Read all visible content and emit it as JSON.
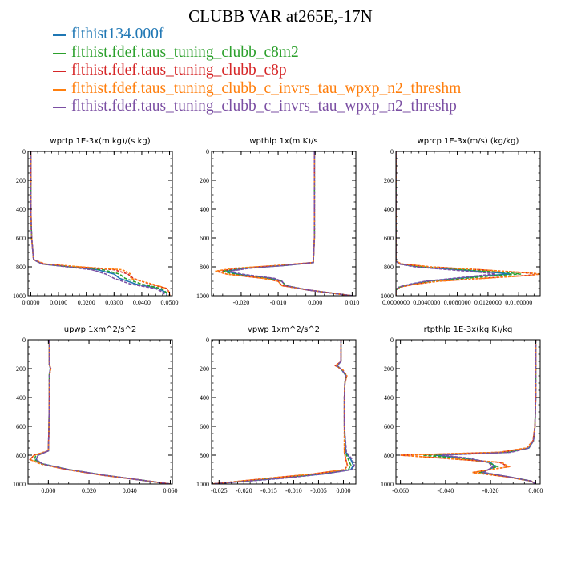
{
  "title": "CLUBB VAR at265E,-17N",
  "legend": [
    {
      "label": "flthist134.000f",
      "color": "#1f77b4"
    },
    {
      "label": "flthist.fdef.taus_tuning_clubb_c8m2",
      "color": "#2ca02c"
    },
    {
      "label": "flthist.fdef.taus_tuning_clubb_c8p",
      "color": "#d62728"
    },
    {
      "label": "flthist.fdef.taus_tuning_clubb_c_invrs_tau_wpxp_n2_threshm",
      "color": "#ff7f0e"
    },
    {
      "label": "flthist.fdef.taus_tuning_clubb_c_invrs_tau_wpxp_n2_threshp",
      "color": "#7b4fa3"
    }
  ],
  "chart_data": [
    {
      "type": "line",
      "title": "wprtp  1E-3x(m kg)/(s kg)",
      "xlim": [
        -0.001,
        0.051
      ],
      "ylim": [
        1000,
        0
      ],
      "xticks": [
        0.0,
        0.01,
        0.02,
        0.03,
        0.04,
        0.05
      ],
      "xtick_labels": [
        "0.0000",
        "0.0100",
        "0.0200",
        "0.0300",
        "0.0400",
        "0.0500"
      ],
      "yticks": [
        0,
        200,
        400,
        600,
        800,
        1000
      ],
      "ytick_labels": [
        "0",
        "200",
        "400",
        "600",
        "800",
        "1000"
      ],
      "y": [
        0,
        200,
        400,
        600,
        750,
        780,
        800,
        820,
        850,
        880,
        920,
        950,
        980,
        1000
      ],
      "series": [
        {
          "values": [
            0,
            0,
            0,
            0.0003,
            0.001,
            0.004,
            0.014,
            0.024,
            0.03,
            0.032,
            0.038,
            0.046,
            0.049,
            0.049
          ]
        },
        {
          "values": [
            0,
            0,
            0,
            0.0003,
            0.001,
            0.004,
            0.015,
            0.026,
            0.032,
            0.034,
            0.04,
            0.047,
            0.049,
            0.049
          ]
        },
        {
          "values": [
            0,
            0,
            0,
            0.0003,
            0.001,
            0.005,
            0.017,
            0.03,
            0.035,
            0.037,
            0.043,
            0.049,
            0.05,
            0.05
          ]
        },
        {
          "values": [
            0,
            0,
            0,
            0.0003,
            0.001,
            0.005,
            0.018,
            0.033,
            0.036,
            0.036,
            0.044,
            0.049,
            0.05,
            0.05
          ]
        },
        {
          "values": [
            0,
            0,
            0,
            0.0003,
            0.001,
            0.004,
            0.013,
            0.022,
            0.027,
            0.03,
            0.036,
            0.045,
            0.048,
            0.048
          ]
        }
      ]
    },
    {
      "type": "line",
      "title": "wpthlp  1x(m K)/s",
      "xlim": [
        -0.028,
        0.011
      ],
      "ylim": [
        1000,
        0
      ],
      "xticks": [
        -0.02,
        -0.01,
        0.0,
        0.01
      ],
      "xtick_labels": [
        "-0.020",
        "-0.010",
        "0.000",
        "0.010"
      ],
      "yticks": [
        0,
        200,
        400,
        600,
        800,
        1000
      ],
      "ytick_labels": [
        "0",
        "200",
        "400",
        "600",
        "800",
        "1000"
      ],
      "y": [
        0,
        200,
        400,
        600,
        770,
        790,
        810,
        830,
        850,
        880,
        900,
        930,
        960,
        1000
      ],
      "series": [
        {
          "values": [
            -0.0002,
            -0.0002,
            -0.0002,
            -0.0002,
            -0.0005,
            -0.008,
            -0.019,
            -0.024,
            -0.021,
            -0.012,
            -0.009,
            -0.008,
            -0.002,
            0.01
          ]
        },
        {
          "values": [
            -0.0002,
            -0.0002,
            -0.0002,
            -0.0002,
            -0.0005,
            -0.009,
            -0.02,
            -0.025,
            -0.022,
            -0.013,
            -0.009,
            -0.008,
            -0.002,
            0.01
          ]
        },
        {
          "values": [
            -0.0002,
            -0.0002,
            -0.0002,
            -0.0002,
            -0.0005,
            -0.01,
            -0.021,
            -0.026,
            -0.024,
            -0.014,
            -0.01,
            -0.009,
            -0.002,
            0.01
          ]
        },
        {
          "values": [
            -0.0002,
            -0.0002,
            -0.0002,
            -0.0002,
            -0.0005,
            -0.01,
            -0.022,
            -0.027,
            -0.024,
            -0.014,
            -0.01,
            -0.009,
            -0.002,
            0.01
          ]
        },
        {
          "values": [
            -0.0002,
            -0.0002,
            -0.0002,
            -0.0002,
            -0.0005,
            -0.008,
            -0.018,
            -0.023,
            -0.02,
            -0.011,
            -0.009,
            -0.008,
            -0.002,
            0.01
          ]
        }
      ]
    },
    {
      "type": "line",
      "title": "wprcp  1E-3x(m/s) (kg/kg)",
      "xlim": [
        0.0,
        0.0188
      ],
      "ylim": [
        1000,
        0
      ],
      "xticks": [
        0.0,
        0.004,
        0.008,
        0.012,
        0.016
      ],
      "xtick_labels": [
        "0.0000000",
        "0.0040000",
        "0.0080000",
        "0.0120000",
        "0.0160000"
      ],
      "yticks": [
        0,
        200,
        400,
        600,
        800,
        1000
      ],
      "ytick_labels": [
        "0",
        "200",
        "400",
        "600",
        "800",
        "1000"
      ],
      "y": [
        0,
        700,
        760,
        780,
        800,
        820,
        840,
        850,
        860,
        880,
        900,
        920,
        940,
        960,
        1000
      ],
      "series": [
        {
          "values": [
            0,
            0,
            0,
            0.0005,
            0.003,
            0.008,
            0.013,
            0.015,
            0.012,
            0.008,
            0.004,
            0.002,
            0.0005,
            0,
            0
          ]
        },
        {
          "values": [
            0,
            0,
            0,
            0.0006,
            0.0035,
            0.009,
            0.0145,
            0.0163,
            0.013,
            0.009,
            0.0045,
            0.0022,
            0.0005,
            0,
            0
          ]
        },
        {
          "values": [
            0,
            0,
            0,
            0.0007,
            0.0045,
            0.011,
            0.0165,
            0.0188,
            0.017,
            0.011,
            0.0055,
            0.0025,
            0.0006,
            0,
            0
          ]
        },
        {
          "values": [
            0,
            0,
            0,
            0.0007,
            0.0045,
            0.011,
            0.017,
            0.0188,
            0.0172,
            0.0115,
            0.0055,
            0.0025,
            0.0006,
            0,
            0
          ]
        },
        {
          "values": [
            0,
            0,
            0,
            0.0004,
            0.0025,
            0.007,
            0.0115,
            0.013,
            0.011,
            0.0075,
            0.0038,
            0.0018,
            0.0004,
            0,
            0
          ]
        }
      ]
    },
    {
      "type": "line",
      "title": "upwp  1xm^2/s^2",
      "xlim": [
        -0.01,
        0.061
      ],
      "ylim": [
        1000,
        0
      ],
      "xticks": [
        0.0,
        0.02,
        0.04,
        0.06
      ],
      "xtick_labels": [
        "0.000",
        "0.020",
        "0.040",
        "0.060"
      ],
      "yticks": [
        0,
        200,
        400,
        600,
        800,
        1000
      ],
      "ytick_labels": [
        "0",
        "200",
        "400",
        "600",
        "800",
        "1000"
      ],
      "y": [
        0,
        170,
        200,
        240,
        280,
        400,
        600,
        770,
        800,
        830,
        860,
        900,
        940,
        970,
        1000
      ],
      "series": [
        {
          "values": [
            0.0005,
            0.0005,
            0.001,
            0.0005,
            0.0005,
            0.0005,
            0.0003,
            0,
            -0.005,
            -0.006,
            -0.003,
            0.01,
            0.028,
            0.044,
            0.06
          ]
        },
        {
          "values": [
            0.0005,
            0.0005,
            0.001,
            0.0005,
            0.0005,
            0.0005,
            0.0003,
            0,
            -0.006,
            -0.007,
            -0.003,
            0.01,
            0.028,
            0.044,
            0.06
          ]
        },
        {
          "values": [
            0.0005,
            0.0005,
            0.0012,
            0.0006,
            0.0005,
            0.0005,
            0.0003,
            0,
            -0.007,
            -0.009,
            -0.004,
            0.009,
            0.027,
            0.044,
            0.06
          ]
        },
        {
          "values": [
            0.0005,
            0.0005,
            0.0012,
            0.0006,
            0.0005,
            0.0005,
            0.0003,
            0,
            -0.007,
            -0.009,
            -0.004,
            0.009,
            0.027,
            0.044,
            0.06
          ]
        },
        {
          "values": [
            0.0005,
            0.0005,
            0.001,
            0.0005,
            0.0005,
            0.0005,
            0.0003,
            0,
            -0.005,
            -0.006,
            -0.003,
            0.01,
            0.028,
            0.044,
            0.06
          ]
        }
      ]
    },
    {
      "type": "line",
      "title": "vpwp  1xm^2/s^2",
      "xlim": [
        -0.0265,
        0.0025
      ],
      "ylim": [
        1000,
        0
      ],
      "xticks": [
        -0.025,
        -0.02,
        -0.015,
        -0.01,
        -0.005,
        0.0
      ],
      "xtick_labels": [
        "-0.025",
        "-0.020",
        "-0.015",
        "-0.010",
        "-0.005",
        "0.000"
      ],
      "yticks": [
        0,
        200,
        400,
        600,
        800,
        1000
      ],
      "ytick_labels": [
        "0",
        "200",
        "400",
        "600",
        "800",
        "1000"
      ],
      "y": [
        0,
        150,
        180,
        210,
        250,
        300,
        400,
        600,
        780,
        830,
        870,
        900,
        930,
        960,
        1000
      ],
      "series": [
        {
          "values": [
            -0.0005,
            -0.0005,
            -0.0012,
            -0.0003,
            0.0005,
            0.0003,
            0.0002,
            0.0002,
            0.0005,
            0.0015,
            0.002,
            0.0015,
            -0.004,
            -0.013,
            -0.0265
          ]
        },
        {
          "values": [
            -0.0005,
            -0.0005,
            -0.0014,
            -0.0002,
            0.0006,
            0.0003,
            0.0002,
            0.0002,
            0.0004,
            0.001,
            0.0015,
            0.001,
            -0.005,
            -0.014,
            -0.0265
          ]
        },
        {
          "values": [
            -0.0005,
            -0.0005,
            -0.0016,
            -0.0001,
            0.0007,
            0.0003,
            0.0002,
            0.0002,
            0.0002,
            0.0005,
            0.0008,
            0.0003,
            -0.006,
            -0.015,
            -0.0265
          ]
        },
        {
          "values": [
            -0.0005,
            -0.0005,
            -0.0016,
            -0.0001,
            0.0007,
            0.0003,
            0.0002,
            0.0002,
            0.0002,
            0.0005,
            0.0008,
            0.0003,
            -0.006,
            -0.015,
            -0.0265
          ]
        },
        {
          "values": [
            -0.0005,
            -0.0005,
            -0.0013,
            -0.0002,
            0.0005,
            0.0003,
            0.0002,
            0.0002,
            0.0006,
            0.0018,
            0.0022,
            0.0018,
            -0.004,
            -0.012,
            -0.0265
          ]
        }
      ]
    },
    {
      "type": "line",
      "title": "rtpthlp  1E-3x(kg K)/kg",
      "xlim": [
        -0.062,
        0.002
      ],
      "ylim": [
        1000,
        0
      ],
      "xticks": [
        -0.06,
        -0.04,
        -0.02,
        0.0
      ],
      "xtick_labels": [
        "-0.060",
        "-0.040",
        "-0.020",
        "0.000"
      ],
      "yticks": [
        0,
        200,
        400,
        600,
        800,
        1000
      ],
      "ytick_labels": [
        "0",
        "200",
        "400",
        "600",
        "800",
        "1000"
      ],
      "y": [
        0,
        200,
        400,
        600,
        700,
        750,
        780,
        800,
        820,
        850,
        880,
        920,
        950,
        980,
        1000
      ],
      "series": [
        {
          "values": [
            0,
            0,
            0,
            -0.0003,
            -0.001,
            -0.003,
            -0.012,
            -0.045,
            -0.032,
            -0.02,
            -0.018,
            -0.024,
            -0.012,
            -0.002,
            0
          ]
        },
        {
          "values": [
            0,
            0,
            0,
            -0.0003,
            -0.001,
            -0.003,
            -0.013,
            -0.05,
            -0.035,
            -0.021,
            -0.017,
            -0.025,
            -0.012,
            -0.002,
            0
          ]
        },
        {
          "values": [
            0,
            0,
            0,
            -0.0003,
            -0.0012,
            -0.004,
            -0.016,
            -0.06,
            -0.042,
            -0.016,
            -0.012,
            -0.028,
            -0.013,
            -0.002,
            0
          ]
        },
        {
          "values": [
            0,
            0,
            0,
            -0.0003,
            -0.0012,
            -0.004,
            -0.016,
            -0.06,
            -0.042,
            -0.015,
            -0.012,
            -0.028,
            -0.013,
            -0.002,
            0
          ]
        },
        {
          "values": [
            0,
            0,
            0,
            -0.0003,
            -0.001,
            -0.003,
            -0.011,
            -0.042,
            -0.03,
            -0.021,
            -0.019,
            -0.023,
            -0.012,
            -0.002,
            0
          ]
        }
      ]
    }
  ]
}
